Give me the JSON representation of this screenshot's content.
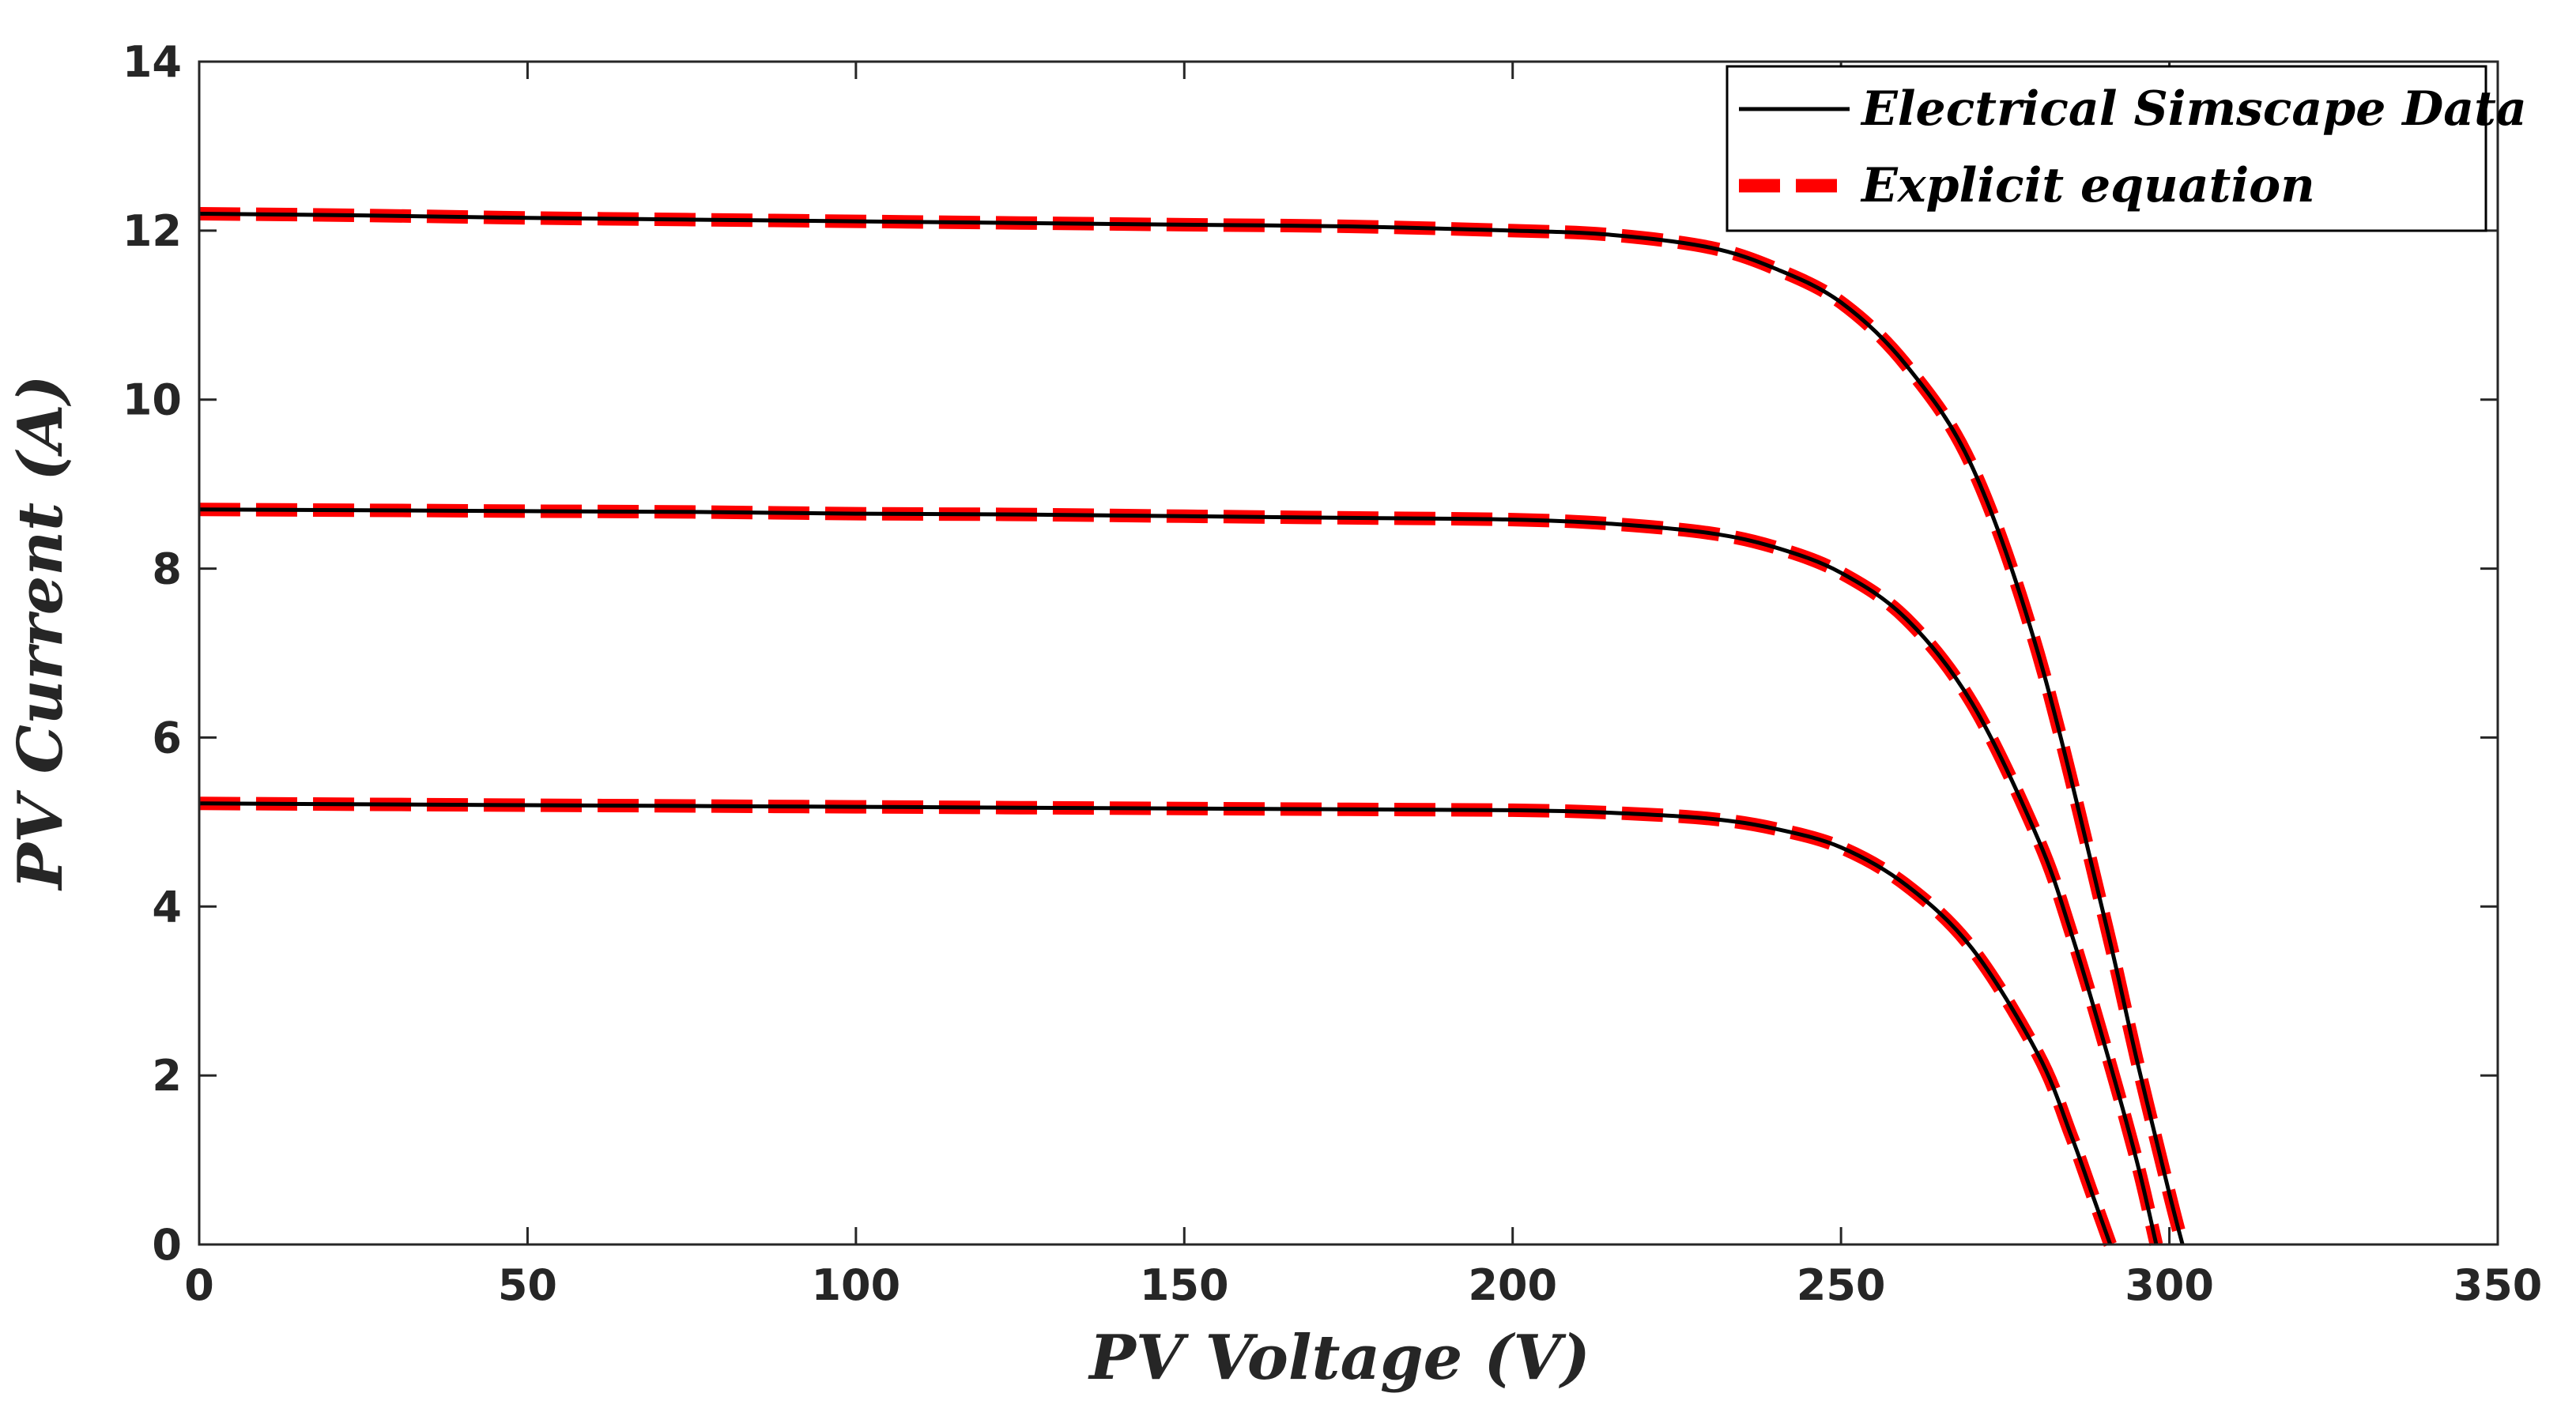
{
  "chart_data": {
    "type": "line",
    "title": "",
    "xlabel": "PV Voltage (V)",
    "ylabel": "PV Current (A)",
    "xlim": [
      0,
      350
    ],
    "ylim": [
      0,
      14
    ],
    "xticks": [
      0,
      50,
      100,
      150,
      200,
      250,
      300,
      350
    ],
    "yticks": [
      0,
      2,
      4,
      6,
      8,
      10,
      12,
      14
    ],
    "legend_position": "top-right",
    "grid": false,
    "series": [
      {
        "name": "Electrical Simscape Data",
        "style": "solid",
        "color": "#000000",
        "curves": [
          {
            "x": [
              0,
              25,
              50,
              75,
              100,
              125,
              150,
              175,
              200,
              215,
              230,
              240,
              250,
              260,
              270,
              280,
              290,
              295,
              300,
              302
            ],
            "y": [
              12.2,
              12.18,
              12.15,
              12.13,
              12.11,
              12.09,
              12.07,
              12.05,
              12.0,
              11.95,
              11.8,
              11.55,
              11.15,
              10.4,
              9.2,
              7.0,
              3.9,
              2.2,
              0.6,
              0.0
            ]
          },
          {
            "x": [
              0,
              25,
              50,
              75,
              100,
              125,
              150,
              175,
              200,
              215,
              230,
              240,
              250,
              260,
              270,
              280,
              285,
              290,
              295,
              298
            ],
            "y": [
              8.7,
              8.69,
              8.68,
              8.67,
              8.65,
              8.64,
              8.62,
              8.6,
              8.58,
              8.53,
              8.42,
              8.25,
              7.95,
              7.4,
              6.4,
              4.8,
              3.7,
              2.4,
              1.0,
              0.0
            ]
          },
          {
            "x": [
              0,
              25,
              50,
              75,
              100,
              125,
              150,
              175,
              200,
              215,
              230,
              240,
              250,
              260,
              270,
              280,
              285,
              288,
              291
            ],
            "y": [
              5.22,
              5.21,
              5.2,
              5.19,
              5.18,
              5.17,
              5.16,
              5.15,
              5.14,
              5.11,
              5.04,
              4.92,
              4.7,
              4.25,
              3.5,
              2.25,
              1.3,
              0.65,
              0.0
            ]
          }
        ]
      },
      {
        "name": "Explicit equation",
        "style": "dashed",
        "color": "#ff0000",
        "curves": [
          {
            "x": [
              0,
              25,
              50,
              75,
              100,
              125,
              150,
              175,
              200,
              215,
              230,
              240,
              250,
              260,
              270,
              280,
              290,
              295,
              300,
              302
            ],
            "y": [
              12.2,
              12.18,
              12.15,
              12.13,
              12.11,
              12.09,
              12.07,
              12.05,
              12.0,
              11.95,
              11.8,
              11.55,
              11.15,
              10.4,
              9.2,
              7.0,
              3.9,
              2.2,
              0.6,
              0.0
            ]
          },
          {
            "x": [
              0,
              25,
              50,
              75,
              100,
              125,
              150,
              175,
              200,
              215,
              230,
              240,
              250,
              260,
              270,
              280,
              285,
              290,
              295,
              298
            ],
            "y": [
              8.7,
              8.69,
              8.68,
              8.67,
              8.65,
              8.64,
              8.62,
              8.6,
              8.58,
              8.53,
              8.42,
              8.25,
              7.95,
              7.4,
              6.4,
              4.8,
              3.7,
              2.4,
              1.0,
              0.0
            ]
          },
          {
            "x": [
              0,
              25,
              50,
              75,
              100,
              125,
              150,
              175,
              200,
              215,
              230,
              240,
              250,
              260,
              270,
              280,
              285,
              288,
              291
            ],
            "y": [
              5.22,
              5.21,
              5.2,
              5.19,
              5.18,
              5.17,
              5.16,
              5.15,
              5.14,
              5.11,
              5.04,
              4.92,
              4.7,
              4.25,
              3.5,
              2.25,
              1.3,
              0.65,
              0.0
            ]
          }
        ]
      }
    ]
  }
}
